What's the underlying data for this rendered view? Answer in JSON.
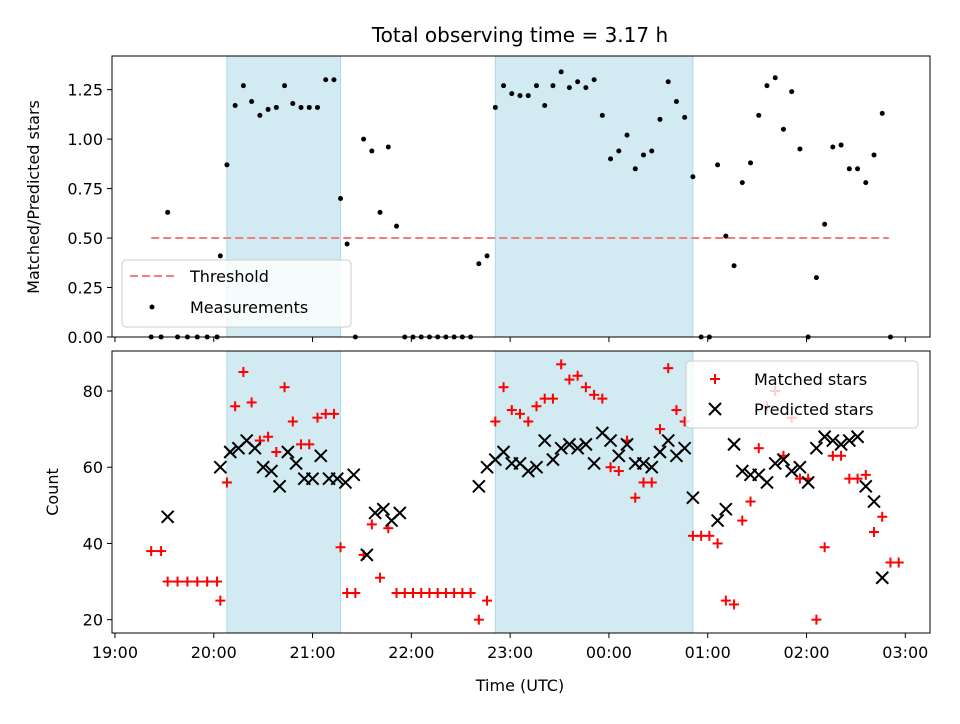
{
  "chart_data": [
    {
      "type": "scatter",
      "title": "Total observing time = 3.17 h",
      "xlabel": "",
      "ylabel": "Matched/Predicted stars",
      "xlim_hours": [
        18.97,
        27.25
      ],
      "ylim": [
        0,
        1.42
      ],
      "yticks": [
        "0.00",
        "0.25",
        "0.50",
        "0.75",
        "1.00",
        "1.25"
      ],
      "shaded_intervals": [
        [
          "20:08",
          "21:17"
        ],
        [
          "22:51",
          "00:51"
        ]
      ],
      "shade_color": "#add8e6",
      "threshold": {
        "label": "Threshold",
        "value": 0.5,
        "x_range": [
          "19:22",
          "02:50"
        ],
        "color": "#f08080"
      },
      "series": [
        {
          "name": "Measurements",
          "color": "#000000",
          "points": [
            [
              "19:22",
              0
            ],
            [
              "19:28",
              0
            ],
            [
              "19:32",
              0.63
            ],
            [
              "19:38",
              0
            ],
            [
              "19:44",
              0
            ],
            [
              "19:50",
              0
            ],
            [
              "19:56",
              0
            ],
            [
              "20:02",
              0
            ],
            [
              "20:04",
              0.41
            ],
            [
              "20:08",
              0.87
            ],
            [
              "20:13",
              1.17
            ],
            [
              "20:18",
              1.27
            ],
            [
              "20:23",
              1.19
            ],
            [
              "20:28",
              1.12
            ],
            [
              "20:33",
              1.15
            ],
            [
              "20:38",
              1.16
            ],
            [
              "20:43",
              1.27
            ],
            [
              "20:48",
              1.18
            ],
            [
              "20:53",
              1.16
            ],
            [
              "20:58",
              1.16
            ],
            [
              "21:03",
              1.16
            ],
            [
              "21:08",
              1.3
            ],
            [
              "21:13",
              1.3
            ],
            [
              "21:17",
              0.7
            ],
            [
              "21:21",
              0.47
            ],
            [
              "21:26",
              0
            ],
            [
              "21:31",
              1.0
            ],
            [
              "21:36",
              0.94
            ],
            [
              "21:41",
              0.63
            ],
            [
              "21:46",
              0.96
            ],
            [
              "21:51",
              0.56
            ],
            [
              "21:56",
              0
            ],
            [
              "22:01",
              0
            ],
            [
              "22:06",
              0
            ],
            [
              "22:11",
              0
            ],
            [
              "22:16",
              0
            ],
            [
              "22:21",
              0
            ],
            [
              "22:26",
              0
            ],
            [
              "22:31",
              0
            ],
            [
              "22:36",
              0
            ],
            [
              "22:41",
              0.37
            ],
            [
              "22:46",
              0.41
            ],
            [
              "22:51",
              1.16
            ],
            [
              "22:56",
              1.27
            ],
            [
              "23:01",
              1.23
            ],
            [
              "23:06",
              1.22
            ],
            [
              "23:11",
              1.22
            ],
            [
              "23:16",
              1.27
            ],
            [
              "23:21",
              1.17
            ],
            [
              "23:26",
              1.27
            ],
            [
              "23:31",
              1.34
            ],
            [
              "23:36",
              1.26
            ],
            [
              "23:41",
              1.29
            ],
            [
              "23:46",
              1.26
            ],
            [
              "23:51",
              1.3
            ],
            [
              "23:56",
              1.12
            ],
            [
              "00:01",
              0.9
            ],
            [
              "00:06",
              0.94
            ],
            [
              "00:11",
              1.02
            ],
            [
              "00:16",
              0.85
            ],
            [
              "00:21",
              0.92
            ],
            [
              "00:26",
              0.94
            ],
            [
              "00:31",
              1.1
            ],
            [
              "00:36",
              1.29
            ],
            [
              "00:41",
              1.19
            ],
            [
              "00:46",
              1.11
            ],
            [
              "00:51",
              0.81
            ],
            [
              "00:56",
              0
            ],
            [
              "01:01",
              0
            ],
            [
              "01:06",
              0.87
            ],
            [
              "01:11",
              0.51
            ],
            [
              "01:16",
              0.36
            ],
            [
              "01:21",
              0.78
            ],
            [
              "01:26",
              0.88
            ],
            [
              "01:31",
              1.12
            ],
            [
              "01:36",
              1.27
            ],
            [
              "01:41",
              1.31
            ],
            [
              "01:46",
              1.05
            ],
            [
              "01:51",
              1.24
            ],
            [
              "01:56",
              0.95
            ],
            [
              "02:01",
              0
            ],
            [
              "02:06",
              0.3
            ],
            [
              "02:11",
              0.57
            ],
            [
              "02:16",
              0.96
            ],
            [
              "02:21",
              0.97
            ],
            [
              "02:26",
              0.85
            ],
            [
              "02:31",
              0.85
            ],
            [
              "02:36",
              0.78
            ],
            [
              "02:41",
              0.92
            ],
            [
              "02:46",
              1.13
            ],
            [
              "02:51",
              0
            ]
          ]
        }
      ],
      "legend": {
        "position": "lower-left",
        "entries": [
          "Threshold",
          "Measurements"
        ]
      }
    },
    {
      "type": "scatter",
      "title": "",
      "xlabel": "Time (UTC)",
      "ylabel": "Count",
      "xlim_hours": [
        18.97,
        27.25
      ],
      "ylim": [
        16.5,
        90.5
      ],
      "yticks": [
        "20",
        "40",
        "60",
        "80"
      ],
      "xticks": [
        "19:00",
        "20:00",
        "21:00",
        "22:00",
        "23:00",
        "00:00",
        "01:00",
        "02:00",
        "03:00"
      ],
      "shaded_intervals": [
        [
          "20:08",
          "21:17"
        ],
        [
          "22:51",
          "00:51"
        ]
      ],
      "shade_color": "#add8e6",
      "series": [
        {
          "name": "Matched stars",
          "marker": "plus",
          "color": "#ff0000",
          "points": [
            [
              "19:22",
              38
            ],
            [
              "19:28",
              38
            ],
            [
              "19:32",
              30
            ],
            [
              "19:38",
              30
            ],
            [
              "19:44",
              30
            ],
            [
              "19:50",
              30
            ],
            [
              "19:56",
              30
            ],
            [
              "20:02",
              30
            ],
            [
              "20:04",
              25
            ],
            [
              "20:08",
              56
            ],
            [
              "20:13",
              76
            ],
            [
              "20:18",
              85
            ],
            [
              "20:23",
              77
            ],
            [
              "20:28",
              67
            ],
            [
              "20:33",
              68
            ],
            [
              "20:38",
              64
            ],
            [
              "20:43",
              81
            ],
            [
              "20:48",
              72
            ],
            [
              "20:53",
              66
            ],
            [
              "20:58",
              66
            ],
            [
              "21:03",
              73
            ],
            [
              "21:08",
              74
            ],
            [
              "21:13",
              74
            ],
            [
              "21:17",
              39
            ],
            [
              "21:21",
              27
            ],
            [
              "21:26",
              27
            ],
            [
              "21:31",
              37
            ],
            [
              "21:36",
              45
            ],
            [
              "21:41",
              31
            ],
            [
              "21:46",
              44
            ],
            [
              "21:51",
              27
            ],
            [
              "21:56",
              27
            ],
            [
              "22:01",
              27
            ],
            [
              "22:06",
              27
            ],
            [
              "22:11",
              27
            ],
            [
              "22:16",
              27
            ],
            [
              "22:21",
              27
            ],
            [
              "22:26",
              27
            ],
            [
              "22:31",
              27
            ],
            [
              "22:36",
              27
            ],
            [
              "22:41",
              20
            ],
            [
              "22:46",
              25
            ],
            [
              "22:51",
              72
            ],
            [
              "22:56",
              81
            ],
            [
              "23:01",
              75
            ],
            [
              "23:06",
              74
            ],
            [
              "23:11",
              72
            ],
            [
              "23:16",
              76
            ],
            [
              "23:21",
              78
            ],
            [
              "23:26",
              78
            ],
            [
              "23:31",
              87
            ],
            [
              "23:36",
              83
            ],
            [
              "23:41",
              84
            ],
            [
              "23:46",
              81
            ],
            [
              "23:51",
              79
            ],
            [
              "23:56",
              78
            ],
            [
              "00:01",
              60
            ],
            [
              "00:06",
              59
            ],
            [
              "00:11",
              67
            ],
            [
              "00:16",
              52
            ],
            [
              "00:21",
              56
            ],
            [
              "00:26",
              56
            ],
            [
              "00:31",
              70
            ],
            [
              "00:36",
              86
            ],
            [
              "00:41",
              75
            ],
            [
              "00:46",
              72
            ],
            [
              "00:51",
              42
            ],
            [
              "00:56",
              42
            ],
            [
              "01:01",
              42
            ],
            [
              "01:06",
              40
            ],
            [
              "01:11",
              25
            ],
            [
              "01:16",
              24
            ],
            [
              "01:21",
              46
            ],
            [
              "01:26",
              51
            ],
            [
              "01:31",
              65
            ],
            [
              "01:36",
              76
            ],
            [
              "01:41",
              80
            ],
            [
              "01:46",
              63
            ],
            [
              "01:51",
              73
            ],
            [
              "01:56",
              57
            ],
            [
              "02:01",
              57
            ],
            [
              "02:06",
              20
            ],
            [
              "02:11",
              39
            ],
            [
              "02:16",
              63
            ],
            [
              "02:21",
              63
            ],
            [
              "02:26",
              57
            ],
            [
              "02:31",
              57
            ],
            [
              "02:36",
              58
            ],
            [
              "02:41",
              43
            ],
            [
              "02:46",
              47
            ],
            [
              "02:51",
              35
            ],
            [
              "02:56",
              35
            ]
          ]
        },
        {
          "name": "Predicted stars",
          "marker": "x",
          "color": "#000000",
          "points": [
            [
              "19:32",
              47
            ],
            [
              "20:04",
              60
            ],
            [
              "20:10",
              64
            ],
            [
              "20:15",
              65
            ],
            [
              "20:20",
              67
            ],
            [
              "20:25",
              65
            ],
            [
              "20:30",
              60
            ],
            [
              "20:35",
              59
            ],
            [
              "20:40",
              55
            ],
            [
              "20:45",
              64
            ],
            [
              "20:50",
              61
            ],
            [
              "20:55",
              57
            ],
            [
              "21:00",
              57
            ],
            [
              "21:05",
              63
            ],
            [
              "21:10",
              57
            ],
            [
              "21:15",
              57
            ],
            [
              "21:20",
              56
            ],
            [
              "21:25",
              58
            ],
            [
              "21:33",
              37
            ],
            [
              "21:38",
              48
            ],
            [
              "21:43",
              49
            ],
            [
              "21:48",
              46
            ],
            [
              "21:53",
              48
            ],
            [
              "22:41",
              55
            ],
            [
              "22:46",
              60
            ],
            [
              "22:51",
              62
            ],
            [
              "22:56",
              64
            ],
            [
              "23:01",
              61
            ],
            [
              "23:06",
              61
            ],
            [
              "23:11",
              59
            ],
            [
              "23:16",
              60
            ],
            [
              "23:21",
              67
            ],
            [
              "23:26",
              62
            ],
            [
              "23:31",
              65
            ],
            [
              "23:36",
              66
            ],
            [
              "23:41",
              65
            ],
            [
              "23:46",
              66
            ],
            [
              "23:51",
              61
            ],
            [
              "23:56",
              69
            ],
            [
              "00:01",
              67
            ],
            [
              "00:06",
              63
            ],
            [
              "00:11",
              66
            ],
            [
              "00:16",
              61
            ],
            [
              "00:21",
              61
            ],
            [
              "00:26",
              60
            ],
            [
              "00:31",
              64
            ],
            [
              "00:36",
              67
            ],
            [
              "00:41",
              63
            ],
            [
              "00:46",
              65
            ],
            [
              "00:51",
              52
            ],
            [
              "01:06",
              46
            ],
            [
              "01:11",
              49
            ],
            [
              "01:16",
              66
            ],
            [
              "01:21",
              59
            ],
            [
              "01:26",
              58
            ],
            [
              "01:31",
              58
            ],
            [
              "01:36",
              56
            ],
            [
              "01:41",
              61
            ],
            [
              "01:46",
              62
            ],
            [
              "01:51",
              59
            ],
            [
              "01:56",
              60
            ],
            [
              "02:01",
              56
            ],
            [
              "02:06",
              65
            ],
            [
              "02:11",
              68
            ],
            [
              "02:16",
              67
            ],
            [
              "02:21",
              66
            ],
            [
              "02:26",
              67
            ],
            [
              "02:31",
              68
            ],
            [
              "02:36",
              55
            ],
            [
              "02:41",
              51
            ],
            [
              "02:46",
              31
            ]
          ]
        }
      ],
      "legend": {
        "position": "top-right",
        "entries": [
          "Matched stars",
          "Predicted stars"
        ]
      }
    }
  ]
}
